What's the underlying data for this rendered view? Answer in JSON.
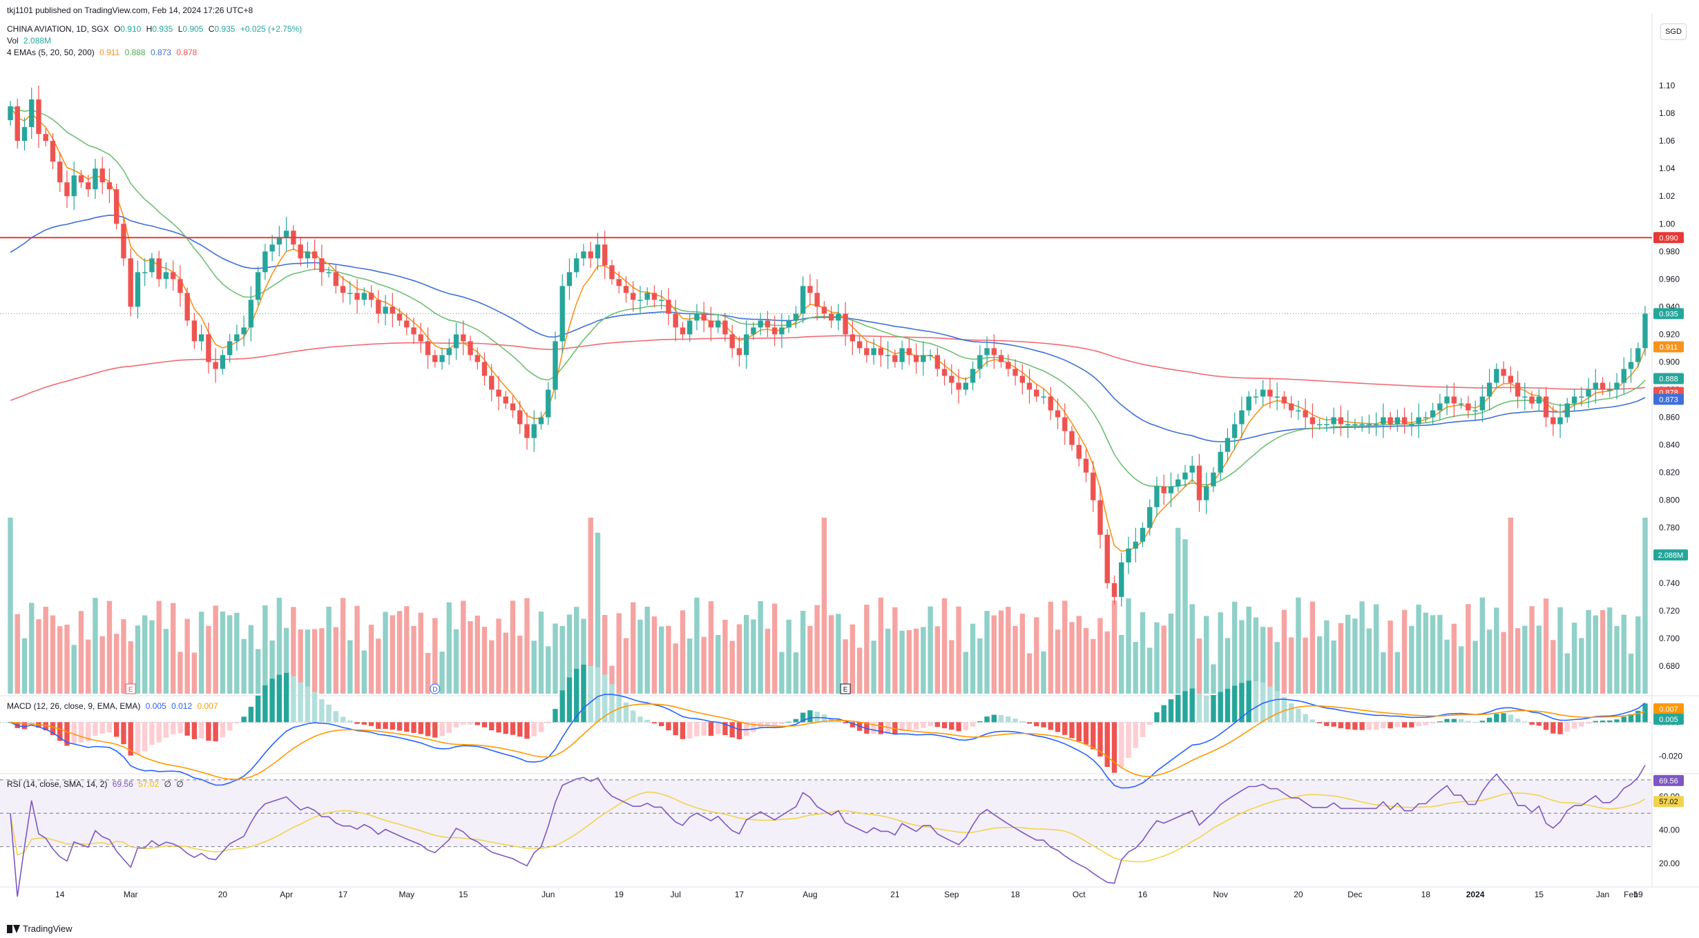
{
  "header": {
    "published": "tkj1101 published on TradingView.com, Feb 14, 2024 17:26 UTC+8",
    "symbol": "CHINA AVIATION, 1D, SGX",
    "o_label": "O",
    "o_val": "0.910",
    "h_label": "H",
    "h_val": "0.935",
    "l_label": "L",
    "l_val": "0.905",
    "c_label": "C",
    "c_val": "0.935",
    "change": "+0.025 (+2.75%)",
    "vol_label": "Vol",
    "vol_val": "2.088M",
    "ema_label": "4 EMAs (5, 20, 50, 200)",
    "ema_vals": [
      "0.911",
      "0.888",
      "0.873",
      "0.878"
    ],
    "currency": "SGD"
  },
  "macd_header": {
    "label": "MACD (12, 26, close, 9, EMA, EMA)",
    "vals": [
      "0.005",
      "0.012",
      "0.007"
    ]
  },
  "rsi_header": {
    "label": "RSI (14, close, SMA, 14, 2)",
    "vals": [
      "69.56",
      "57.02",
      "∅",
      "∅"
    ]
  },
  "footer": {
    "brand": "TradingView"
  },
  "colors": {
    "up": "#26a69a",
    "down": "#ef5350",
    "vol_up": "#8fd0c8",
    "vol_down": "#f5a4a2",
    "ema5": "#f7931a",
    "ema20": "#6fbf73",
    "ema50": "#3f6fd8",
    "ema200": "#f06a72",
    "resistance": "#e53935",
    "macd": "#2962ff",
    "signal": "#ff9800",
    "rsi": "#7e57c2",
    "rsi_ma": "#f2d34f"
  },
  "chart_data": {
    "type": "candlestick",
    "symbol": "CHINA AVIATION",
    "exchange": "SGX",
    "interval": "1D",
    "currency": "SGD",
    "ylim": [
      0.66,
      1.12
    ],
    "y_ticks": [
      1.1,
      1.08,
      1.06,
      1.04,
      1.02,
      1.0,
      0.98,
      0.96,
      0.94,
      0.92,
      0.9,
      0.88,
      0.86,
      0.84,
      0.82,
      0.8,
      0.78,
      0.74,
      0.72,
      0.7,
      0.68
    ],
    "y_tick_labels": [
      "1.10",
      "1.08",
      "1.06",
      "1.04",
      "1.02",
      "1.00",
      "0.980",
      "0.960",
      "0.940",
      "0.920",
      "0.900",
      "0.880",
      "0.860",
      "0.840",
      "0.820",
      "0.800",
      "0.780",
      "0.740",
      "0.720",
      "0.700",
      "0.680"
    ],
    "x_ticks": [
      {
        "label": "14",
        "i": 7
      },
      {
        "label": "Mar",
        "i": 17
      },
      {
        "label": "20",
        "i": 30
      },
      {
        "label": "Apr",
        "i": 39
      },
      {
        "label": "17",
        "i": 47
      },
      {
        "label": "May",
        "i": 56
      },
      {
        "label": "15",
        "i": 64
      },
      {
        "label": "Jun",
        "i": 76
      },
      {
        "label": "19",
        "i": 86
      },
      {
        "label": "Jul",
        "i": 94
      },
      {
        "label": "17",
        "i": 103
      },
      {
        "label": "Aug",
        "i": 113
      },
      {
        "label": "21",
        "i": 125
      },
      {
        "label": "Sep",
        "i": 133
      },
      {
        "label": "18",
        "i": 142
      },
      {
        "label": "Oct",
        "i": 151
      },
      {
        "label": "16",
        "i": 160
      },
      {
        "label": "Nov",
        "i": 171
      },
      {
        "label": "20",
        "i": 182
      },
      {
        "label": "Dec",
        "i": 190
      },
      {
        "label": "18",
        "i": 200
      },
      {
        "label": "2024",
        "i": 207
      },
      {
        "label": "15",
        "i": 216
      },
      {
        "label": "Jan",
        "i": 225
      },
      {
        "label": "Feb",
        "i": 229
      },
      {
        "label": "19",
        "i": 238
      }
    ],
    "closes": [
      1.085,
      1.06,
      1.07,
      1.09,
      1.065,
      1.06,
      1.045,
      1.03,
      1.02,
      1.035,
      1.03,
      1.025,
      1.04,
      1.03,
      1.025,
      1.0,
      0.975,
      0.94,
      0.965,
      0.965,
      0.975,
      0.96,
      0.965,
      0.96,
      0.95,
      0.93,
      0.915,
      0.92,
      0.9,
      0.895,
      0.905,
      0.915,
      0.92,
      0.925,
      0.945,
      0.965,
      0.98,
      0.985,
      0.99,
      0.995,
      0.985,
      0.975,
      0.98,
      0.975,
      0.965,
      0.965,
      0.955,
      0.95,
      0.95,
      0.945,
      0.95,
      0.945,
      0.935,
      0.94,
      0.935,
      0.93,
      0.925,
      0.92,
      0.915,
      0.905,
      0.9,
      0.905,
      0.91,
      0.92,
      0.915,
      0.905,
      0.9,
      0.89,
      0.88,
      0.875,
      0.87,
      0.865,
      0.855,
      0.845,
      0.855,
      0.86,
      0.88,
      0.915,
      0.955,
      0.965,
      0.975,
      0.98,
      0.975,
      0.985,
      0.97,
      0.96,
      0.955,
      0.95,
      0.945,
      0.945,
      0.95,
      0.945,
      0.945,
      0.935,
      0.925,
      0.92,
      0.93,
      0.935,
      0.93,
      0.925,
      0.93,
      0.92,
      0.91,
      0.905,
      0.92,
      0.925,
      0.93,
      0.925,
      0.92,
      0.925,
      0.93,
      0.935,
      0.955,
      0.95,
      0.94,
      0.935,
      0.93,
      0.935,
      0.92,
      0.915,
      0.91,
      0.905,
      0.91,
      0.905,
      0.905,
      0.9,
      0.91,
      0.905,
      0.9,
      0.905,
      0.905,
      0.895,
      0.89,
      0.885,
      0.88,
      0.885,
      0.895,
      0.905,
      0.91,
      0.905,
      0.9,
      0.895,
      0.89,
      0.885,
      0.88,
      0.875,
      0.875,
      0.865,
      0.86,
      0.85,
      0.84,
      0.83,
      0.82,
      0.8,
      0.775,
      0.74,
      0.73,
      0.755,
      0.765,
      0.77,
      0.78,
      0.795,
      0.81,
      0.805,
      0.81,
      0.815,
      0.82,
      0.825,
      0.8,
      0.81,
      0.82,
      0.835,
      0.845,
      0.855,
      0.865,
      0.875,
      0.875,
      0.88,
      0.875,
      0.875,
      0.87,
      0.865,
      0.865,
      0.86,
      0.855,
      0.855,
      0.855,
      0.86,
      0.855,
      0.855,
      0.855,
      0.855,
      0.855,
      0.855,
      0.86,
      0.855,
      0.86,
      0.855,
      0.855,
      0.86,
      0.86,
      0.865,
      0.87,
      0.875,
      0.87,
      0.87,
      0.865,
      0.865,
      0.875,
      0.885,
      0.895,
      0.89,
      0.885,
      0.875,
      0.875,
      0.87,
      0.875,
      0.86,
      0.855,
      0.86,
      0.87,
      0.875,
      0.875,
      0.88,
      0.885,
      0.88,
      0.88,
      0.885,
      0.895,
      0.9,
      0.91,
      0.935
    ],
    "current_price": 0.935,
    "volume_last": "2.088M",
    "annotations": [
      {
        "type": "hline",
        "price": 0.99,
        "label": "0.990"
      },
      {
        "type": "marker",
        "label": "E",
        "i": 17
      },
      {
        "type": "marker",
        "label": "D",
        "i": 60
      },
      {
        "type": "marker",
        "label": "E",
        "i": 118
      }
    ],
    "price_labels": [
      {
        "value": 0.99,
        "text": "0.990",
        "key": "resistance"
      },
      {
        "value": 0.935,
        "text": "0.935",
        "key": "up"
      },
      {
        "value": 0.911,
        "text": "0.911",
        "key": "ema5"
      },
      {
        "value": 0.888,
        "text": "0.888",
        "key": "up"
      },
      {
        "value": 0.878,
        "text": "0.878",
        "key": "down"
      },
      {
        "value": 0.873,
        "text": "0.873",
        "key": "ema50"
      }
    ],
    "indicators": {
      "macd": {
        "params": "12, 26, close, 9",
        "macd": 0.005,
        "signal": 0.012,
        "histogram": 0.007,
        "ylim": [
          -0.03,
          0.014
        ],
        "y_ticks": [
          0.0,
          -0.02
        ],
        "y_tick_labels": [
          "0.000",
          "-0.020"
        ]
      },
      "rsi": {
        "params": "14, close, SMA, 14",
        "value": 69.56,
        "ma": 57.02,
        "ylim": [
          10,
          72
        ],
        "y_ticks": [
          60,
          40,
          20
        ],
        "y_tick_labels": [
          "60.00",
          "40.00",
          "20.00"
        ],
        "bands": [
          70,
          50,
          30
        ]
      }
    }
  }
}
